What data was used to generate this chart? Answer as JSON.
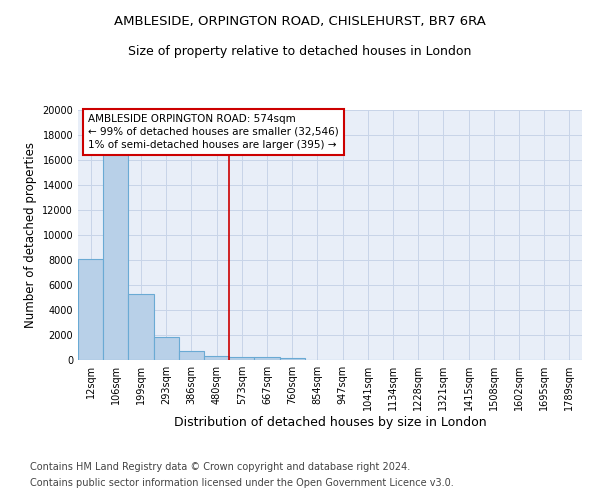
{
  "title_line1": "AMBLESIDE, ORPINGTON ROAD, CHISLEHURST, BR7 6RA",
  "title_line2": "Size of property relative to detached houses in London",
  "xlabel": "Distribution of detached houses by size in London",
  "ylabel": "Number of detached properties",
  "bar_values": [
    8100,
    16500,
    5300,
    1850,
    750,
    350,
    280,
    220,
    200,
    0,
    0,
    0,
    0,
    0,
    0,
    0,
    0,
    0,
    0,
    0
  ],
  "bar_labels": [
    "12sqm",
    "106sqm",
    "199sqm",
    "293sqm",
    "386sqm",
    "480sqm",
    "573sqm",
    "667sqm",
    "760sqm",
    "854sqm",
    "947sqm",
    "1041sqm",
    "1134sqm",
    "1228sqm",
    "1321sqm",
    "1415sqm",
    "1508sqm",
    "1602sqm",
    "1695sqm",
    "1789sqm"
  ],
  "bar_color": "#b8d0e8",
  "bar_edgecolor": "#6aaad4",
  "vline_x_index": 5.5,
  "vline_color": "#cc0000",
  "annotation_title": "AMBLESIDE ORPINGTON ROAD: 574sqm",
  "annotation_line1": "← 99% of detached houses are smaller (32,546)",
  "annotation_line2": "1% of semi-detached houses are larger (395) →",
  "annotation_box_facecolor": "#ffffff",
  "annotation_box_edgecolor": "#cc0000",
  "ylim": [
    0,
    20000
  ],
  "yticks": [
    0,
    2000,
    4000,
    6000,
    8000,
    10000,
    12000,
    14000,
    16000,
    18000,
    20000
  ],
  "grid_color": "#c8d4e8",
  "background_color": "#e8eef8",
  "footer_line1": "Contains HM Land Registry data © Crown copyright and database right 2024.",
  "footer_line2": "Contains public sector information licensed under the Open Government Licence v3.0.",
  "title_fontsize": 9.5,
  "subtitle_fontsize": 9,
  "ylabel_fontsize": 8.5,
  "xlabel_fontsize": 9,
  "tick_fontsize": 7,
  "footer_fontsize": 7,
  "annotation_fontsize": 7.5
}
